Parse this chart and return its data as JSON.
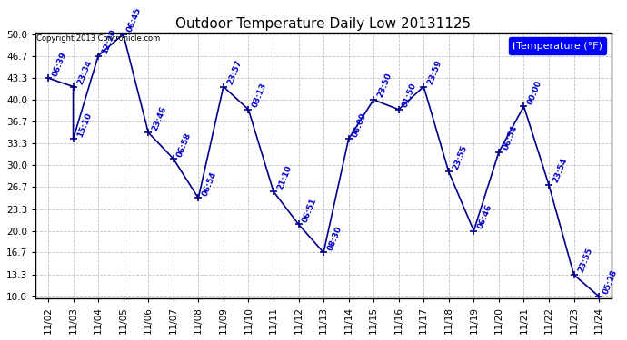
{
  "title": "Outdoor Temperature Daily Low 20131125",
  "copyright": "Copyright 2013 Contronicle.com",
  "legend_label": "Temperature (°F)",
  "background_color": "#ffffff",
  "plot_bg_color": "#ffffff",
  "grid_color": "#bbbbbb",
  "line_color": "#00008b",
  "text_color": "#0000cc",
  "points": [
    {
      "date_idx": 0,
      "date": "11/02",
      "time": "06:39",
      "temp": 43.3
    },
    {
      "date_idx": 1,
      "date": "11/03",
      "time": "23:34",
      "temp": 42.0
    },
    {
      "date_idx": 1,
      "date": "11/03",
      "time": "15:10",
      "temp": 34.0
    },
    {
      "date_idx": 2,
      "date": "11/04",
      "time": "12:20",
      "temp": 46.7
    },
    {
      "date_idx": 3,
      "date": "11/05",
      "time": "06:45",
      "temp": 50.0
    },
    {
      "date_idx": 4,
      "date": "11/06",
      "time": "23:46",
      "temp": 35.0
    },
    {
      "date_idx": 5,
      "date": "11/07",
      "time": "06:58",
      "temp": 31.0
    },
    {
      "date_idx": 6,
      "date": "11/08",
      "time": "06:54",
      "temp": 25.0
    },
    {
      "date_idx": 7,
      "date": "11/09",
      "time": "23:57",
      "temp": 42.0
    },
    {
      "date_idx": 8,
      "date": "11/10",
      "time": "03:13",
      "temp": 38.5
    },
    {
      "date_idx": 9,
      "date": "11/11",
      "time": "21:10",
      "temp": 26.0
    },
    {
      "date_idx": 10,
      "date": "11/12",
      "time": "06:51",
      "temp": 21.0
    },
    {
      "date_idx": 11,
      "date": "11/13",
      "time": "08:30",
      "temp": 16.7
    },
    {
      "date_idx": 12,
      "date": "11/14",
      "time": "06:09",
      "temp": 34.0
    },
    {
      "date_idx": 13,
      "date": "11/15",
      "time": "23:50",
      "temp": 40.0
    },
    {
      "date_idx": 14,
      "date": "11/16",
      "time": "01:50",
      "temp": 38.5
    },
    {
      "date_idx": 15,
      "date": "11/17",
      "time": "23:59",
      "temp": 42.0
    },
    {
      "date_idx": 16,
      "date": "11/18",
      "time": "23:55",
      "temp": 29.0
    },
    {
      "date_idx": 17,
      "date": "11/19",
      "time": "06:46",
      "temp": 20.0
    },
    {
      "date_idx": 18,
      "date": "11/20",
      "time": "06:54",
      "temp": 32.0
    },
    {
      "date_idx": 19,
      "date": "11/21",
      "time": "00:00",
      "temp": 39.0
    },
    {
      "date_idx": 20,
      "date": "11/22",
      "time": "23:54",
      "temp": 27.0
    },
    {
      "date_idx": 21,
      "date": "11/23",
      "time": "23:55",
      "temp": 13.3
    },
    {
      "date_idx": 22,
      "date": "11/24",
      "time": "05:28",
      "temp": 10.0
    }
  ],
  "x_tick_labels": [
    "11/02",
    "11/03",
    "11/04",
    "11/05",
    "11/06",
    "11/07",
    "11/08",
    "11/09",
    "11/10",
    "11/11",
    "11/12",
    "11/13",
    "11/14",
    "11/15",
    "11/16",
    "11/17",
    "11/18",
    "11/19",
    "11/20",
    "11/21",
    "11/22",
    "11/23",
    "11/24"
  ],
  "y_ticks": [
    10.0,
    13.3,
    16.7,
    20.0,
    23.3,
    26.7,
    30.0,
    33.3,
    36.7,
    40.0,
    43.3,
    46.7,
    50.0
  ],
  "ylim": [
    10.0,
    50.0
  ],
  "xlim": [
    -0.5,
    22.5
  ],
  "line_width": 1.2,
  "annotation_fontsize": 6.5,
  "title_fontsize": 11,
  "tick_fontsize": 7.5,
  "legend_fontsize": 8,
  "copyright_fontsize": 6,
  "figwidth": 6.9,
  "figheight": 3.75,
  "dpi": 100
}
